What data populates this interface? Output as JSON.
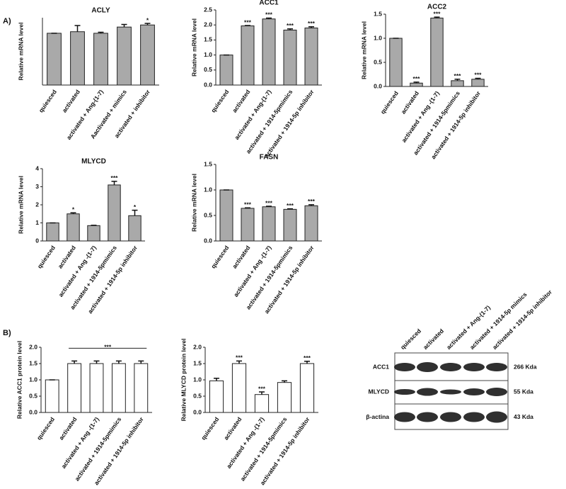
{
  "panels": [
    "A)",
    "B)"
  ],
  "chart_data": [
    {
      "type": "bar",
      "title": "ACLY",
      "y_label": "Relative mRNA level",
      "color": "#a9a9a9",
      "categories": [
        "quiesced",
        "activated",
        "activated + Ang-(1-7)",
        "Aactivated + mimics",
        "activated + inhibitor"
      ],
      "values": [
        1.0,
        1.03,
        1.0,
        1.12,
        1.16
      ],
      "errors": [
        0,
        0.12,
        0.02,
        0.05,
        0.03
      ],
      "annotations": [
        {
          "index": 4,
          "text": "*"
        }
      ],
      "ylim": [
        0,
        1.3
      ],
      "yticks": []
    },
    {
      "type": "bar",
      "title": "ACC1",
      "y_label": "Relative mRNA level",
      "color": "#a9a9a9",
      "categories": [
        "quiesced",
        "activated",
        "activated + Ang-(1-7)",
        "activated + 1914-5pmimics",
        "activated + 1914-5p inhibitor"
      ],
      "values": [
        1.0,
        1.97,
        2.2,
        1.83,
        1.9
      ],
      "errors": [
        0,
        0.01,
        0.03,
        0.04,
        0.04
      ],
      "annotations": [
        {
          "index": 1,
          "text": "***"
        },
        {
          "index": 2,
          "text": "***"
        },
        {
          "index": 3,
          "text": "***"
        },
        {
          "index": 4,
          "text": "***"
        }
      ],
      "ylim": [
        0,
        2.5
      ],
      "yticks": [
        {
          "value": 0,
          "label": "0.0"
        },
        0.5,
        {
          "value": 1,
          "label": "1.0"
        },
        1.5,
        {
          "value": 2,
          "label": "2.0"
        },
        2.5
      ]
    },
    {
      "type": "bar",
      "title": "ACC2",
      "y_label": "Relative mRNA level",
      "color": "#a9a9a9",
      "categories": [
        "quiesced",
        "activated",
        "activated + Ang -(1-7)",
        "activated + 1914-5pmimics",
        "activated + 1914-5p inhibitor"
      ],
      "values": [
        1.0,
        0.07,
        1.42,
        0.12,
        0.15
      ],
      "errors": [
        0,
        0.02,
        0.02,
        0.03,
        0.02
      ],
      "annotations": [
        {
          "index": 1,
          "text": "***"
        },
        {
          "index": 2,
          "text": "***"
        },
        {
          "index": 3,
          "text": "***"
        },
        {
          "index": 4,
          "text": "***"
        }
      ],
      "ylim": [
        0,
        1.5
      ],
      "yticks": [
        {
          "value": 0,
          "label": "0.0"
        },
        0.5,
        {
          "value": 1,
          "label": "1.0"
        },
        1.5
      ]
    },
    {
      "type": "bar",
      "title": "MLYCD",
      "y_label": "Relative mRNA level",
      "color": "#a9a9a9",
      "categories": [
        "quiesced",
        "activated",
        "activated + Ang -(1-7)",
        "activated + 1914-5pmimics",
        "activated + 1914-5p inhibitor"
      ],
      "values": [
        1.0,
        1.5,
        0.85,
        3.1,
        1.4
      ],
      "errors": [
        0,
        0.06,
        0.02,
        0.2,
        0.3
      ],
      "annotations": [
        {
          "index": 1,
          "text": "*"
        },
        {
          "index": 3,
          "text": "***"
        },
        {
          "index": 4,
          "text": "*"
        }
      ],
      "ylim": [
        0,
        4
      ],
      "yticks": [
        0,
        1,
        2,
        3,
        4
      ]
    },
    {
      "type": "bar",
      "title": "FASN",
      "y_label": "Relative mRNA level",
      "color": "#a9a9a9",
      "categories": [
        "quiesced",
        "activated",
        "activated + Ang -(1-7)",
        "activated + 1914-5pmimics",
        "activated + 1914-5p inhibitor"
      ],
      "values": [
        1.0,
        0.64,
        0.67,
        0.62,
        0.69
      ],
      "errors": [
        0,
        0.01,
        0.01,
        0.01,
        0.02
      ],
      "annotations": [
        {
          "index": 1,
          "text": "***"
        },
        {
          "index": 2,
          "text": "***"
        },
        {
          "index": 3,
          "text": "***"
        },
        {
          "index": 4,
          "text": "***"
        }
      ],
      "ylim": [
        0,
        1.5
      ],
      "yticks": [
        {
          "value": 0,
          "label": "0.0"
        },
        0.5,
        {
          "value": 1,
          "label": "1.0"
        },
        1.5
      ]
    },
    {
      "type": "bar",
      "y_label": "Relative ACC1 protein level",
      "color": "#ffffff",
      "categories": [
        "quiesced",
        "activated",
        "activated + Ang -(1-7)",
        "activated + 1914-5pmimics",
        "activated + 1914-5p inhibitor"
      ],
      "values": [
        1.0,
        1.5,
        1.5,
        1.5,
        1.5
      ],
      "errors": [
        0,
        0.08,
        0.08,
        0.08,
        0.08
      ],
      "annotations": [
        {
          "from": 1,
          "to": 4,
          "text": "***"
        }
      ],
      "ylim": [
        0,
        2
      ],
      "yticks": [
        {
          "value": 0,
          "label": "0.0"
        },
        0.5,
        {
          "value": 1,
          "label": "1.0"
        },
        1.5,
        {
          "value": 2,
          "label": "2.0"
        }
      ]
    },
    {
      "type": "bar",
      "y_label": "Relative MLYCD protein level",
      "color": "#ffffff",
      "categories": [
        "quiesced",
        "activated",
        "activated + Ang -(1-7)",
        "activated + 1914-5pmimics",
        "activated + 1914-5p inhibitor"
      ],
      "values": [
        0.97,
        1.5,
        0.55,
        0.92,
        1.5
      ],
      "errors": [
        0.08,
        0.08,
        0.08,
        0.05,
        0.07
      ],
      "annotations": [
        {
          "index": 1,
          "text": "***"
        },
        {
          "index": 2,
          "text": "***"
        },
        {
          "index": 4,
          "text": "***"
        }
      ],
      "ylim": [
        0,
        2
      ],
      "yticks": [
        {
          "value": 0,
          "label": "0.0"
        },
        0.5,
        {
          "value": 1,
          "label": "1.0"
        },
        1.5,
        {
          "value": 2,
          "label": "2.0"
        }
      ]
    }
  ],
  "blot": {
    "lanes": [
      "quiesced",
      "activated",
      "activated + Ang-(1-7)",
      "activated + 1914-5p  mimics",
      "activated + 1914-5p  inhibitor"
    ],
    "rows": [
      {
        "name": "ACC1",
        "size": "266 Kda"
      },
      {
        "name": "MLYCD",
        "size": "55 Kda"
      },
      {
        "name": "β-actina",
        "size": "43 Kda"
      }
    ]
  }
}
